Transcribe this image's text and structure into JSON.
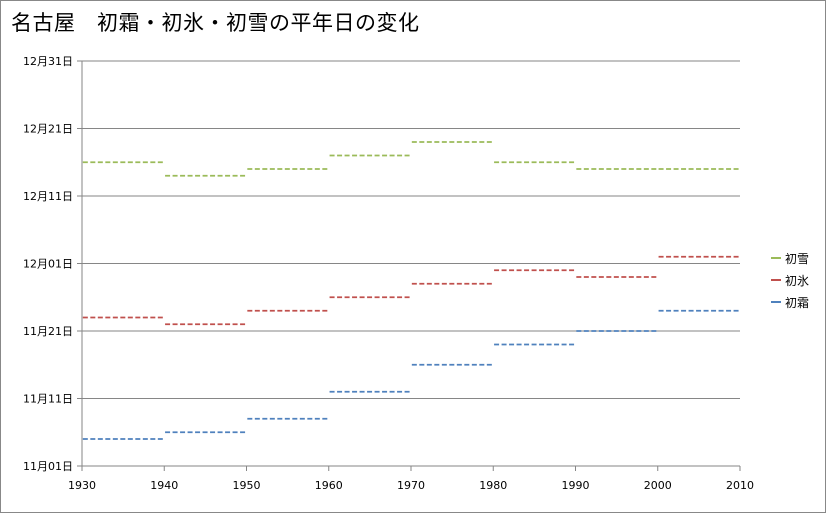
{
  "chart_data": {
    "type": "step",
    "title": "名古屋　初霜・初氷・初雪の平年日の変化",
    "xlabel": "",
    "ylabel": "",
    "x_ticks": [
      1930,
      1940,
      1950,
      1960,
      1970,
      1980,
      1990,
      2000,
      2010
    ],
    "xlim": [
      1930,
      2010
    ],
    "y_ticks": [
      "11月01日",
      "11月11日",
      "11月21日",
      "12月01日",
      "12月11日",
      "12月21日",
      "12月31日"
    ],
    "y_tick_days": [
      0,
      10,
      20,
      30,
      40,
      50,
      60
    ],
    "ylim_days_from_nov1": [
      0,
      60
    ],
    "grid": true,
    "legend_position": "right",
    "periods": [
      {
        "start": 1931,
        "end": 1940
      },
      {
        "start": 1941,
        "end": 1950
      },
      {
        "start": 1951,
        "end": 1960
      },
      {
        "start": 1961,
        "end": 1970
      },
      {
        "start": 1971,
        "end": 1980
      },
      {
        "start": 1981,
        "end": 1990
      },
      {
        "start": 1991,
        "end": 2000
      },
      {
        "start": 2001,
        "end": 2010
      }
    ],
    "series": [
      {
        "name": "初雪",
        "color": "#9bbb59",
        "dates": [
          "12月16日",
          "12月14日",
          "12月15日",
          "12月17日",
          "12月19日",
          "12月16日",
          "12月15日",
          "12月15日"
        ],
        "day_values": [
          45,
          43,
          44,
          46,
          48,
          45,
          44,
          44
        ]
      },
      {
        "name": "初氷",
        "color": "#c0504d",
        "dates": [
          "11月23日",
          "11月22日",
          "11月24日",
          "11月26日",
          "11月28日",
          "11月30日",
          "11月29日",
          "12月02日"
        ],
        "day_values": [
          22,
          21,
          23,
          25,
          27,
          29,
          28,
          31
        ]
      },
      {
        "name": "初霜",
        "color": "#4f81bd",
        "dates": [
          "11月05日",
          "11月06日",
          "11月08日",
          "11月12日",
          "11月16日",
          "11月19日",
          "11月21日",
          "11月24日"
        ],
        "day_values": [
          4,
          5,
          7,
          11,
          15,
          18,
          20,
          23
        ]
      }
    ]
  }
}
